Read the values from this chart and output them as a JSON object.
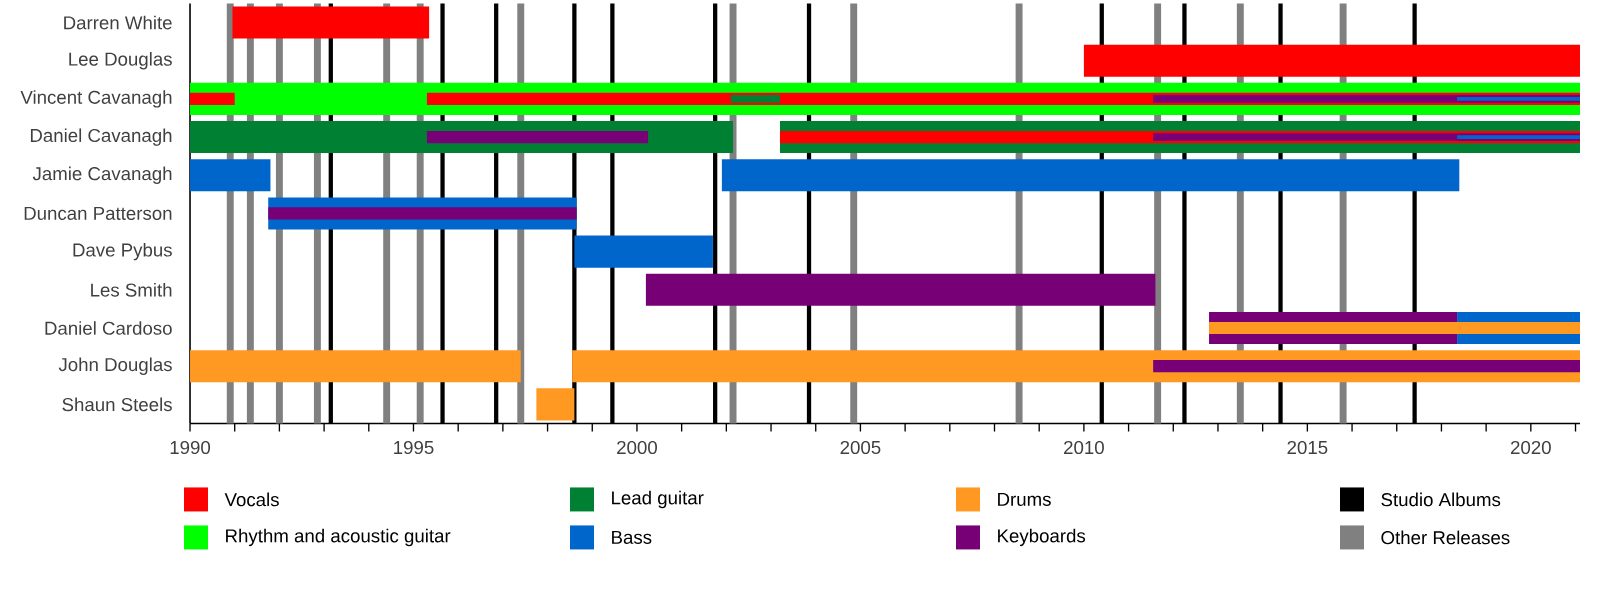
{
  "chart_data": {
    "type": "bar",
    "orientation": "horizontal",
    "legend": "bottom",
    "categories": [
      "Darren White",
      "Lee Douglas",
      "Vincent Cavanagh",
      "Daniel Cavanagh",
      "Jamie Cavanagh",
      "Duncan Patterson",
      "Dave Pybus",
      "Les Smith",
      "Daniel Cardoso",
      "John Douglas",
      "Shaun Steels"
    ],
    "xlim": [
      1990,
      2021.1
    ],
    "xticks": [
      1990,
      {
        "value": 1991,
        "label": null
      },
      {
        "value": 1992,
        "label": null
      },
      {
        "value": 1993,
        "label": null
      },
      {
        "value": 1994,
        "label": null
      },
      1995,
      {
        "value": 1996,
        "label": null
      },
      {
        "value": 1997,
        "label": null
      },
      {
        "value": 1998,
        "label": null
      },
      {
        "value": 1999,
        "label": null
      },
      2000,
      {
        "value": 2001,
        "label": null
      },
      {
        "value": 2002,
        "label": null
      },
      {
        "value": 2003,
        "label": null
      },
      {
        "value": 2004,
        "label": null
      },
      2005,
      {
        "value": 2006,
        "label": null
      },
      {
        "value": 2007,
        "label": null
      },
      {
        "value": 2008,
        "label": null
      },
      {
        "value": 2009,
        "label": null
      },
      2010,
      {
        "value": 2011,
        "label": null
      },
      {
        "value": 2012,
        "label": null
      },
      {
        "value": 2013,
        "label": null
      },
      {
        "value": 2014,
        "label": null
      },
      2015,
      {
        "value": 2016,
        "label": null
      },
      {
        "value": 2017,
        "label": null
      },
      {
        "value": 2018,
        "label": null
      },
      {
        "value": 2019,
        "label": null
      },
      2020,
      {
        "value": 2021,
        "label": null
      }
    ],
    "series": [
      {
        "name": "Vocals",
        "color": "#ff0000",
        "base": [
          1990.95,
          2010.0,
          null,
          null,
          null,
          null,
          null,
          null,
          null,
          null,
          null
        ],
        "values": [
          4.4,
          11.1,
          null,
          null,
          null,
          null,
          null,
          null,
          null,
          null,
          null
        ]
      },
      {
        "name": "Rhythm and acoustic guitar",
        "color": "#00ff00",
        "base": [
          null,
          null,
          1990,
          null,
          null,
          null,
          null,
          null,
          null,
          null,
          null
        ],
        "values": [
          null,
          null,
          31.1,
          null,
          null,
          null,
          null,
          null,
          null,
          null,
          null
        ]
      },
      {
        "name": "Lead guitar",
        "color": "#008033",
        "base": [
          null,
          null,
          null,
          1990,
          null,
          null,
          null,
          null,
          null,
          null,
          null
        ],
        "values": [
          null,
          null,
          null,
          12.15,
          null,
          null,
          null,
          null,
          null,
          null,
          null
        ]
      },
      {
        "color": "#008033",
        "base": [
          null,
          null,
          null,
          2003.2,
          null,
          null,
          null,
          null,
          null,
          null,
          null
        ],
        "values": [
          null,
          null,
          null,
          17.9,
          null,
          null,
          null,
          null,
          null,
          null,
          null
        ]
      },
      {
        "name": "Bass",
        "color": "#0066cc",
        "base": [
          null,
          null,
          null,
          null,
          1990,
          1991.75,
          1998.6,
          null,
          2018.35,
          null,
          null
        ],
        "values": [
          null,
          null,
          null,
          null,
          1.8,
          6.9,
          3.1,
          null,
          2.75,
          null,
          null
        ]
      },
      {
        "color": "#0066cc",
        "base": [
          null,
          null,
          null,
          null,
          2001.9,
          null,
          null,
          null,
          null,
          null,
          null
        ],
        "values": [
          null,
          null,
          null,
          null,
          16.5,
          null,
          null,
          null,
          null,
          null,
          null
        ]
      },
      {
        "name": "Drums",
        "color": "#ff9922",
        "base": [
          null,
          null,
          null,
          null,
          null,
          null,
          null,
          null,
          null,
          1990,
          1997.75
        ],
        "values": [
          null,
          null,
          null,
          null,
          null,
          null,
          null,
          null,
          null,
          7.4,
          0.85
        ]
      },
      {
        "color": "#ff9922",
        "base": [
          null,
          null,
          null,
          null,
          null,
          null,
          null,
          null,
          null,
          1998.55,
          null
        ],
        "values": [
          null,
          null,
          null,
          null,
          null,
          null,
          null,
          null,
          null,
          22.55,
          null
        ]
      },
      {
        "name": "Keyboards",
        "color": "#770077",
        "base": [
          null,
          null,
          null,
          null,
          null,
          null,
          null,
          2000.2,
          2012.8,
          null,
          null
        ],
        "values": [
          null,
          null,
          null,
          null,
          null,
          null,
          null,
          11.4,
          5.55,
          null,
          null
        ]
      },
      {
        "color": "#ff0000",
        "base": [
          null,
          null,
          1990,
          2003.2,
          null,
          null,
          null,
          null,
          null,
          null,
          null
        ],
        "values": [
          null,
          null,
          1.0,
          17.9,
          null,
          null,
          null,
          null,
          null,
          null,
          null
        ]
      },
      {
        "color": "#ff0000",
        "base": [
          null,
          null,
          1995.3,
          null,
          null,
          null,
          null,
          null,
          null,
          null,
          null
        ],
        "values": [
          null,
          null,
          25.8,
          null,
          null,
          null,
          null,
          null,
          null,
          null,
          null
        ]
      },
      {
        "color": "#008033",
        "base": [
          null,
          null,
          2002.1,
          null,
          null,
          null,
          null,
          null,
          null,
          null,
          null
        ],
        "values": [
          null,
          null,
          1.1,
          null,
          null,
          null,
          null,
          null,
          null,
          null,
          null
        ]
      },
      {
        "color": "#770077",
        "base": [
          null,
          null,
          2011.55,
          1995.3,
          null,
          1991.75,
          null,
          null,
          null,
          2011.55,
          null
        ],
        "values": [
          null,
          null,
          9.55,
          4.95,
          null,
          6.9,
          null,
          null,
          null,
          9.55,
          null
        ]
      },
      {
        "color": "#770077",
        "base": [
          null,
          null,
          null,
          2011.55,
          null,
          null,
          null,
          null,
          null,
          null,
          null
        ],
        "values": [
          null,
          null,
          null,
          9.55,
          null,
          null,
          null,
          null,
          null,
          null,
          null
        ]
      },
      {
        "color": "#ff9922",
        "base": [
          null,
          null,
          null,
          null,
          null,
          null,
          null,
          null,
          2012.8,
          null,
          null
        ],
        "values": [
          null,
          null,
          null,
          null,
          null,
          null,
          null,
          null,
          8.3,
          null,
          null
        ]
      },
      {
        "color": "#0066cc",
        "base": [
          null,
          null,
          2018.35,
          2018.35,
          null,
          null,
          null,
          null,
          null,
          null,
          null
        ],
        "values": [
          null,
          null,
          2.75,
          2.75,
          null,
          null,
          null,
          null,
          null,
          null,
          null
        ]
      }
    ],
    "ref_lines": [
      {
        "axis": "x",
        "value": 1993.15,
        "color": "#000000",
        "label": "Studio Albums"
      },
      {
        "axis": "x",
        "value": 1995.65,
        "color": "#000000"
      },
      {
        "axis": "x",
        "value": 1996.85,
        "color": "#000000"
      },
      {
        "axis": "x",
        "value": 1998.6,
        "color": "#000000"
      },
      {
        "axis": "x",
        "value": 1999.45,
        "color": "#000000"
      },
      {
        "axis": "x",
        "value": 2001.75,
        "color": "#000000"
      },
      {
        "axis": "x",
        "value": 2003.85,
        "color": "#000000"
      },
      {
        "axis": "x",
        "value": 2010.4,
        "color": "#000000"
      },
      {
        "axis": "x",
        "value": 2012.25,
        "color": "#000000"
      },
      {
        "axis": "x",
        "value": 2014.4,
        "color": "#000000"
      },
      {
        "axis": "x",
        "value": 2017.4,
        "color": "#000000"
      },
      {
        "axis": "x",
        "value": 1990.9,
        "color": "#808080",
        "label": "Other Releases"
      },
      {
        "axis": "x",
        "value": 1991.35,
        "color": "#808080"
      },
      {
        "axis": "x",
        "value": 1992.0,
        "color": "#808080"
      },
      {
        "axis": "x",
        "value": 1992.85,
        "color": "#808080"
      },
      {
        "axis": "x",
        "value": 1994.4,
        "color": "#808080"
      },
      {
        "axis": "x",
        "value": 1995.15,
        "color": "#808080"
      },
      {
        "axis": "x",
        "value": 1997.4,
        "color": "#808080"
      },
      {
        "axis": "x",
        "value": 2002.15,
        "color": "#808080"
      },
      {
        "axis": "x",
        "value": 2004.85,
        "color": "#808080"
      },
      {
        "axis": "x",
        "value": 2008.55,
        "color": "#808080"
      },
      {
        "axis": "x",
        "value": 2011.65,
        "color": "#808080"
      },
      {
        "axis": "x",
        "value": 2013.5,
        "color": "#808080"
      },
      {
        "axis": "x",
        "value": 2015.8,
        "color": "#808080"
      }
    ]
  }
}
